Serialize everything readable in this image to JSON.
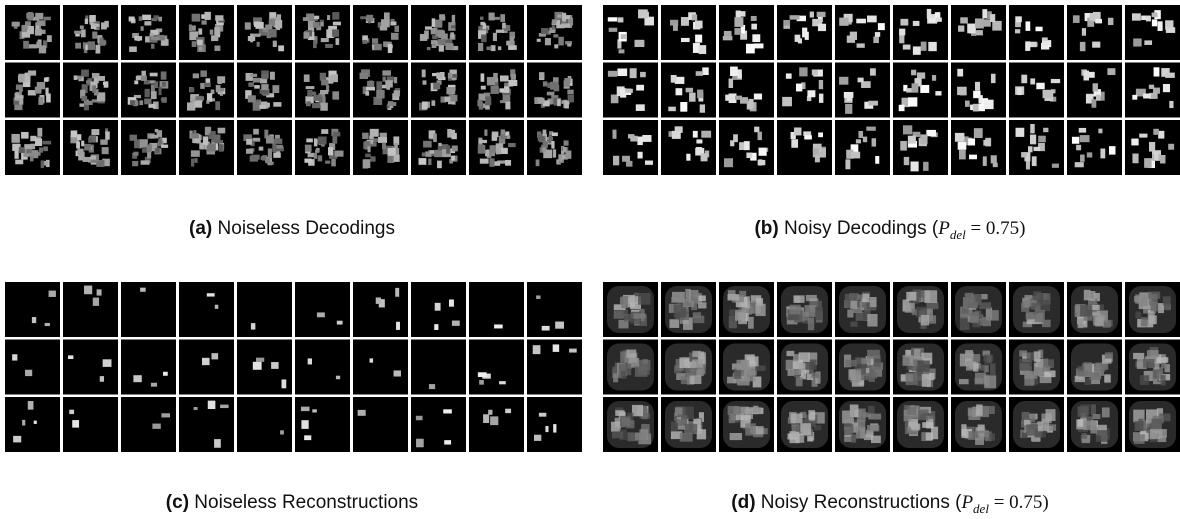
{
  "panels": [
    {
      "label": "(a)",
      "text": " Noiseless Decodings"
    },
    {
      "label": "(b)",
      "text": " Noisy Decodings (",
      "symbol": "P",
      "subscript": "del",
      "rest": " = 0.75)"
    },
    {
      "label": "(c)",
      "text": " Noiseless Reconstructions"
    },
    {
      "label": "(d)",
      "text": " Noisy Reconstructions (",
      "symbol": "P",
      "subscript": "del",
      "rest": " = 0.75)"
    }
  ]
}
